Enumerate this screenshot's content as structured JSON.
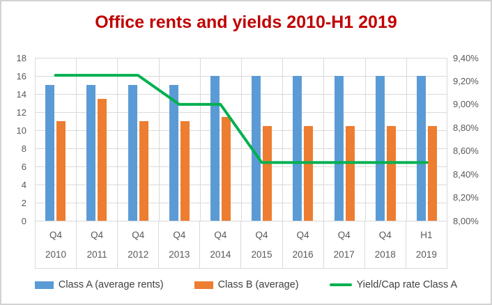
{
  "title": {
    "text": "Office rents and yields 2010-H1 2019",
    "color": "#c00000"
  },
  "palette": {
    "class_a_blue": "#5b9bd5",
    "class_b_orange": "#ed7d31",
    "yield_green": "#00b050",
    "axis_text": "#595959",
    "gridline": "#d9d9d9",
    "frame_border": "#d2d2d2"
  },
  "chart_data": {
    "type": "bar",
    "subtype": "combo-bar-line",
    "title": "Office rents and yields 2010-H1 2019",
    "categories": [
      {
        "period": "Q4",
        "year": "2010"
      },
      {
        "period": "Q4",
        "year": "2011"
      },
      {
        "period": "Q4",
        "year": "2012"
      },
      {
        "period": "Q4",
        "year": "2013"
      },
      {
        "period": "Q4",
        "year": "2014"
      },
      {
        "period": "Q4",
        "year": "2015"
      },
      {
        "period": "Q4",
        "year": "2016"
      },
      {
        "period": "Q4",
        "year": "2017"
      },
      {
        "period": "Q4",
        "year": "2018"
      },
      {
        "period": "H1",
        "year": "2019"
      }
    ],
    "series": [
      {
        "name": "Class A (average rents)",
        "type": "bar",
        "axis": "left",
        "color": "#5b9bd5",
        "values": [
          15,
          15,
          15,
          15,
          16,
          16,
          16,
          16,
          16,
          16
        ]
      },
      {
        "name": "Class B (average)",
        "type": "bar",
        "axis": "left",
        "color": "#ed7d31",
        "values": [
          11,
          13.5,
          11,
          11,
          11.5,
          10.5,
          10.5,
          10.5,
          10.5,
          10.5
        ]
      },
      {
        "name": "Yield/Cap rate Class A",
        "type": "line",
        "axis": "right",
        "color": "#00b050",
        "values": [
          9.25,
          9.25,
          9.25,
          9.0,
          9.0,
          8.5,
          8.5,
          8.5,
          8.5,
          8.5
        ]
      }
    ],
    "left_axis": {
      "min": 0,
      "max": 18,
      "step": 2
    },
    "right_axis": {
      "min": 8.0,
      "max": 9.4,
      "step": 0.2,
      "format": "percent-comma",
      "labels": [
        "9,40%",
        "9,20%",
        "9,00%",
        "8,80%",
        "8,60%",
        "8,40%",
        "8,20%",
        "8,00%"
      ]
    },
    "grid": true,
    "legend_position": "bottom"
  }
}
